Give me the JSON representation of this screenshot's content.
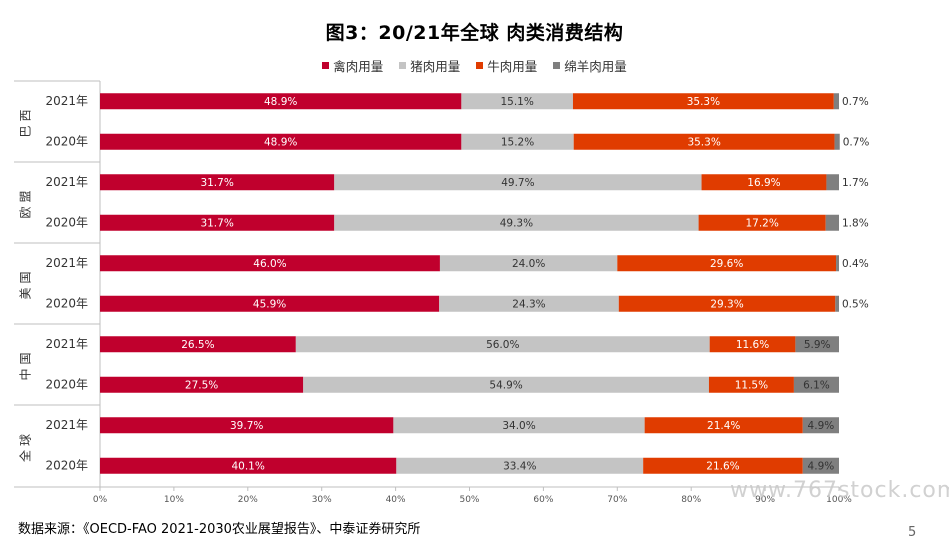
{
  "title": "图3：20/21年全球 肉类消费结构",
  "source": "数据来源：《OECD-FAO 2021-2030农业展望报告》、中泰证券研究所",
  "page_number": "5",
  "watermark": "www.767stock.com",
  "chart_data": {
    "type": "bar",
    "orientation": "horizontal",
    "stacked": "percent",
    "title": "图3：20/21年全球 肉类消费结构",
    "legend_position": "top",
    "xlim": [
      0,
      100
    ],
    "x_ticks": [
      "0%",
      "10%",
      "20%",
      "30%",
      "40%",
      "50%",
      "60%",
      "70%",
      "80%",
      "90%",
      "100%"
    ],
    "groups": [
      {
        "name": "巴西",
        "rows": [
          "2021年",
          "2020年"
        ]
      },
      {
        "name": "欧盟",
        "rows": [
          "2021年",
          "2020年"
        ]
      },
      {
        "name": "美国",
        "rows": [
          "2021年",
          "2020年"
        ]
      },
      {
        "name": "中国",
        "rows": [
          "2021年",
          "2020年"
        ]
      },
      {
        "name": "全球",
        "rows": [
          "2021年",
          "2020年"
        ]
      }
    ],
    "series": [
      {
        "name": "禽肉用量",
        "color": "#c0002d",
        "values": [
          48.9,
          48.9,
          31.7,
          31.7,
          46.0,
          45.9,
          26.5,
          27.5,
          39.7,
          40.1
        ],
        "labels": [
          "48.9%",
          "48.9%",
          "31.7%",
          "31.7%",
          "46.0%",
          "45.9%",
          "26.5%",
          "27.5%",
          "39.7%",
          "40.1%"
        ]
      },
      {
        "name": "猪肉用量",
        "color": "#c4c4c4",
        "values": [
          15.1,
          15.2,
          49.7,
          49.3,
          24.0,
          24.3,
          56.0,
          54.9,
          34.0,
          33.4
        ],
        "labels": [
          "15.1%",
          "15.2%",
          "49.7%",
          "49.3%",
          "24.0%",
          "24.3%",
          "56.0%",
          "54.9%",
          "34.0%",
          "33.4%"
        ]
      },
      {
        "name": "牛肉用量",
        "color": "#e03c00",
        "values": [
          35.3,
          35.3,
          16.9,
          17.2,
          29.6,
          29.3,
          11.6,
          11.5,
          21.4,
          21.6
        ],
        "labels": [
          "35.3%",
          "35.3%",
          "16.9%",
          "17.2%",
          "29.6%",
          "29.3%",
          "11.6%",
          "11.5%",
          "21.4%",
          "21.6%"
        ]
      },
      {
        "name": "绵羊肉用量",
        "color": "#7f7f7f",
        "values": [
          0.7,
          0.7,
          1.7,
          1.8,
          0.4,
          0.5,
          5.9,
          6.1,
          4.9,
          4.9
        ],
        "labels": [
          "0.7%",
          "0.7%",
          "1.7%",
          "1.8%",
          "0.4%",
          "0.5%",
          "5.9%",
          "6.1%",
          "4.9%",
          "4.9%"
        ]
      }
    ]
  }
}
